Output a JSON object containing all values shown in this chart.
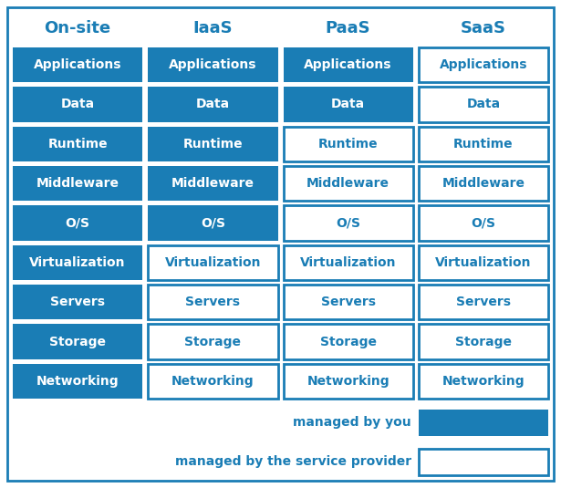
{
  "columns": [
    "On-site",
    "IaaS",
    "PaaS",
    "SaaS"
  ],
  "rows": [
    "Applications",
    "Data",
    "Runtime",
    "Middleware",
    "O/S",
    "Virtualization",
    "Servers",
    "Storage",
    "Networking"
  ],
  "blue_color": "#1a7db5",
  "white_color": "#ffffff",
  "filled": [
    [
      true,
      true,
      true,
      true,
      true,
      true,
      true,
      true,
      true
    ],
    [
      true,
      true,
      true,
      true,
      true,
      false,
      false,
      false,
      false
    ],
    [
      true,
      true,
      false,
      false,
      false,
      false,
      false,
      false,
      false
    ],
    [
      false,
      false,
      false,
      false,
      false,
      false,
      false,
      false,
      false
    ]
  ],
  "legend_labels": [
    "managed by you",
    "managed by the service provider"
  ],
  "header_fontsize": 13,
  "cell_fontsize": 10,
  "legend_fontsize": 10
}
